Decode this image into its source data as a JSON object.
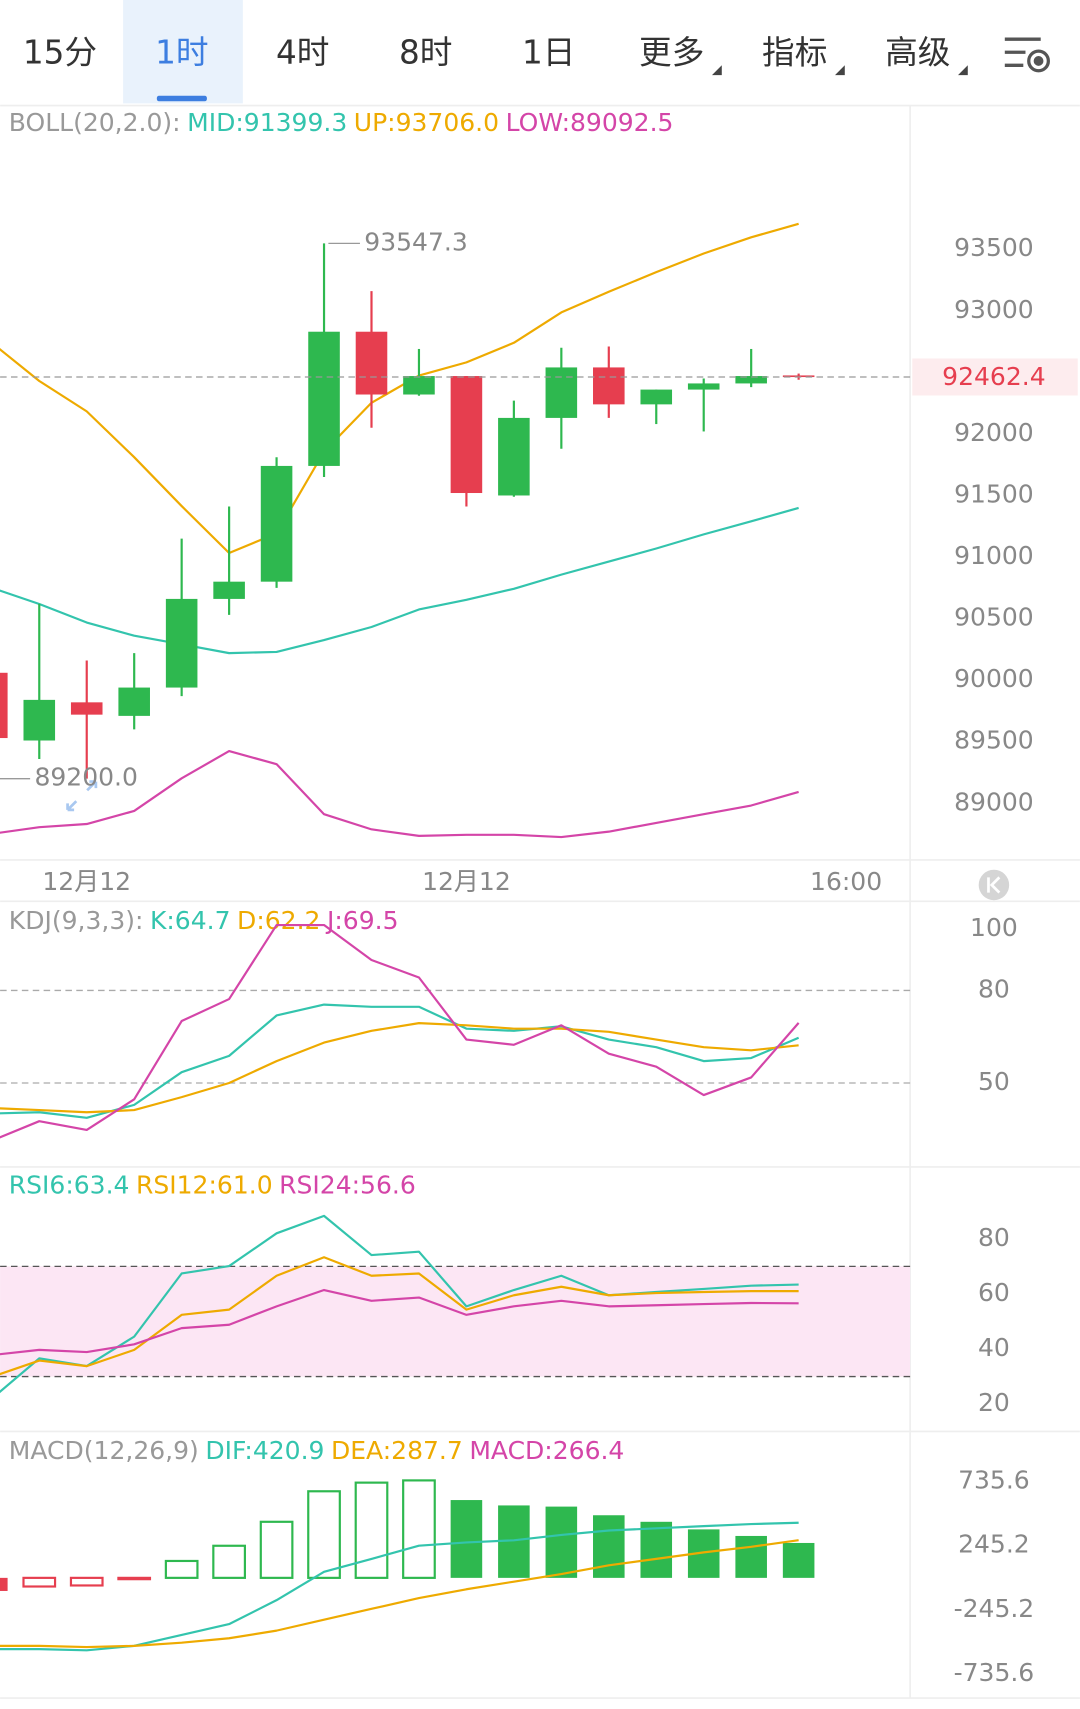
{
  "tabs": {
    "items": [
      "15分",
      "1时",
      "4时",
      "8时",
      "1日",
      "更多",
      "指标",
      "高级"
    ],
    "active": 1
  },
  "chart_data": [
    {
      "type": "candlestick",
      "indicator": "BOLL(20,2.0):",
      "categories": [
        null,
        null,
        "12月12",
        null,
        null,
        null,
        null,
        null,
        null,
        null,
        "12月12",
        null,
        null,
        null,
        null,
        null,
        null,
        null,
        "16:00"
      ],
      "open": [
        90060,
        89510,
        89820,
        89710,
        89940,
        90660,
        90800,
        91740,
        92830,
        92320,
        92470,
        91500,
        92130,
        92540,
        92240,
        92360,
        92410,
        92475,
        null
      ],
      "high": [
        90130,
        90620,
        90160,
        90220,
        91150,
        91410,
        91810,
        93547.3,
        93160,
        92690,
        92470,
        92270,
        92700,
        92710,
        92360,
        92450,
        92690,
        92490,
        null
      ],
      "low": [
        89470,
        89360,
        89200,
        89600,
        89870,
        90530,
        90750,
        91650,
        92050,
        92310,
        91410,
        91490,
        91880,
        92130,
        92080,
        92020,
        92380,
        92440,
        null
      ],
      "close": [
        89530,
        89840,
        89720,
        89940,
        90660,
        90800,
        91740,
        92830,
        92320,
        92470,
        91520,
        92130,
        92540,
        92240,
        92360,
        92410,
        92470,
        92462.4,
        null
      ],
      "up_color": "#2eb84f",
      "down_color": "#e63e4f",
      "series": [
        {
          "name": "MID:91399.3",
          "color": "#33c4ad",
          "values": [
            90750,
            90618,
            90468,
            90361,
            90291,
            90220,
            90229,
            90326,
            90432,
            90574,
            90653,
            90742,
            90857,
            90963,
            91069,
            91184,
            91290,
            91399.3,
            null
          ]
        },
        {
          "name": "UP:93706.0",
          "color": "#eeaa00",
          "values": [
            92740,
            92430,
            92183,
            91811,
            91414,
            91033,
            91192,
            91856,
            92253,
            92474,
            92581,
            92740,
            92987,
            93155,
            93314,
            93465,
            93597,
            93706.0,
            null
          ]
        },
        {
          "name": "LOW:89092.5",
          "color": "#d445a8",
          "values": [
            88752,
            88806,
            88832,
            88938,
            89203,
            89424,
            89318,
            88911,
            88788,
            88735,
            88744,
            88744,
            88726,
            88770,
            88841,
            88911,
            88982,
            89092.5,
            null
          ]
        }
      ],
      "annotations": [
        {
          "value": 93547.3,
          "label": "93547.3"
        },
        {
          "value": 89200,
          "label": "89200.0"
        }
      ],
      "ylim": [
        88540,
        94640
      ],
      "yticks": [
        89000,
        89500,
        90000,
        90500,
        91000,
        91500,
        92000,
        92500,
        93000,
        93500
      ]
    },
    {
      "type": "line",
      "indicator": "KDJ(9,3,3):",
      "series": [
        {
          "name": "K:64.7",
          "color": "#33c4ad",
          "values": [
            40.1,
            40.5,
            38.7,
            42.9,
            53.5,
            58.8,
            71.9,
            75.4,
            74.7,
            74.7,
            67.6,
            66.9,
            68.4,
            64.1,
            61.6,
            57.1,
            58.1,
            64.7
          ]
        },
        {
          "name": "D:62.2",
          "color": "#eeaa00",
          "values": [
            41.9,
            41.2,
            40.5,
            41.2,
            45.4,
            50.0,
            57.1,
            63.1,
            66.9,
            69.4,
            68.7,
            67.6,
            67.6,
            66.6,
            64.1,
            61.6,
            60.6,
            62.2
          ]
        },
        {
          "name": "J:69.5",
          "color": "#d445a8",
          "values": [
            31.3,
            37.6,
            34.8,
            44.7,
            70.1,
            77.2,
            101.2,
            101.2,
            89.9,
            84.2,
            64.1,
            62.4,
            68.7,
            59.5,
            55.3,
            46.1,
            51.8,
            69.5
          ]
        }
      ],
      "dashed_lines": [
        80,
        50
      ],
      "ylim": [
        23.5,
        108.2
      ],
      "yticks": [
        50,
        80,
        100
      ]
    },
    {
      "type": "line",
      "series": [
        {
          "name": "RSI6:63.4",
          "color": "#33c4ad",
          "values": [
            22.0,
            36.6,
            33.8,
            44.5,
            67.4,
            70.1,
            82.0,
            88.3,
            74.1,
            75.3,
            55.5,
            61.4,
            66.6,
            59.5,
            60.7,
            61.8,
            63.0,
            63.4
          ]
        },
        {
          "name": "RSI12:61.0",
          "color": "#eeaa00",
          "values": [
            29.9,
            35.8,
            33.8,
            39.7,
            52.4,
            54.3,
            66.6,
            73.3,
            66.6,
            67.4,
            54.3,
            59.5,
            62.6,
            59.5,
            60.3,
            60.7,
            61.0,
            61.0
          ]
        },
        {
          "name": "RSI24:56.6",
          "color": "#d445a8",
          "values": [
            37.8,
            39.7,
            38.9,
            41.7,
            47.6,
            48.8,
            55.5,
            61.4,
            57.5,
            58.7,
            52.4,
            55.5,
            57.5,
            55.5,
            55.9,
            56.3,
            56.7,
            56.6
          ]
        }
      ],
      "band": [
        30,
        70
      ],
      "band_color": "#fce6f4",
      "ylim": [
        10.1,
        104.9
      ],
      "yticks": [
        20,
        40,
        60,
        80
      ]
    },
    {
      "type": "macd",
      "indicator": "MACD(12,26,9)",
      "series": [
        {
          "name": "DIF:420.9",
          "color": "#33c4ad",
          "kind": "line",
          "values": [
            -544,
            -544,
            -553,
            -519,
            -436,
            -353,
            -170,
            46,
            145,
            245,
            270,
            287,
            328,
            362,
            378,
            395,
            411,
            420.9
          ]
        },
        {
          "name": "DEA:287.7",
          "color": "#eeaa00",
          "kind": "line",
          "values": [
            -519,
            -519,
            -528,
            -519,
            -495,
            -461,
            -403,
            -320,
            -237,
            -154,
            -87,
            -29,
            29,
            96,
            145,
            195,
            237,
            287.7
          ]
        },
        {
          "name": "MACD:266.4",
          "color": "#d445a8",
          "kind": "bar",
          "values": [
            -100,
            -66,
            -58,
            -10,
            129,
            245,
            428,
            661,
            727,
            744,
            594,
            553,
            544,
            478,
            428,
            370,
            320,
            266.4
          ]
        }
      ],
      "bar_up_color": "#2eb84f",
      "bar_down_color": "#e63e4f",
      "ylim": [
        -918,
        1093
      ],
      "yticks": [
        735.6,
        245.2,
        -245.2,
        -735.6
      ]
    }
  ]
}
